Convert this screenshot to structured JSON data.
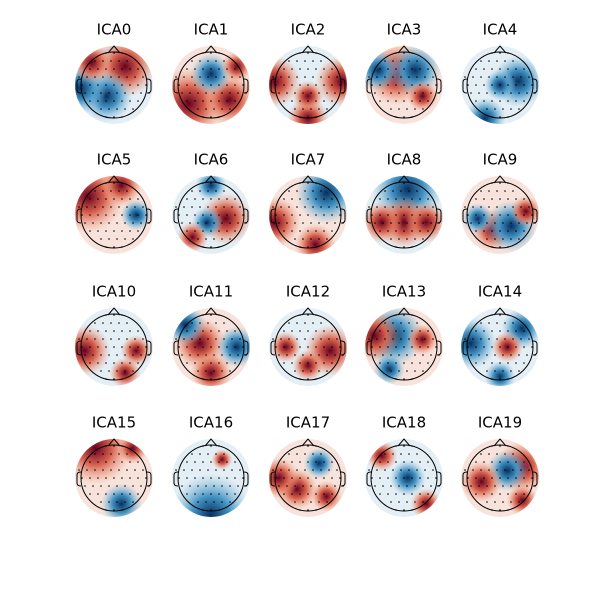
{
  "chart_data": {
    "type": "topomap",
    "titles": [
      "ICA0",
      "ICA1",
      "ICA2",
      "ICA3",
      "ICA4",
      "ICA5",
      "ICA6",
      "ICA7",
      "ICA8",
      "ICA9",
      "ICA10",
      "ICA11",
      "ICA12",
      "ICA13",
      "ICA14",
      "ICA15",
      "ICA16",
      "ICA17",
      "ICA18",
      "ICA19"
    ]
  }
}
